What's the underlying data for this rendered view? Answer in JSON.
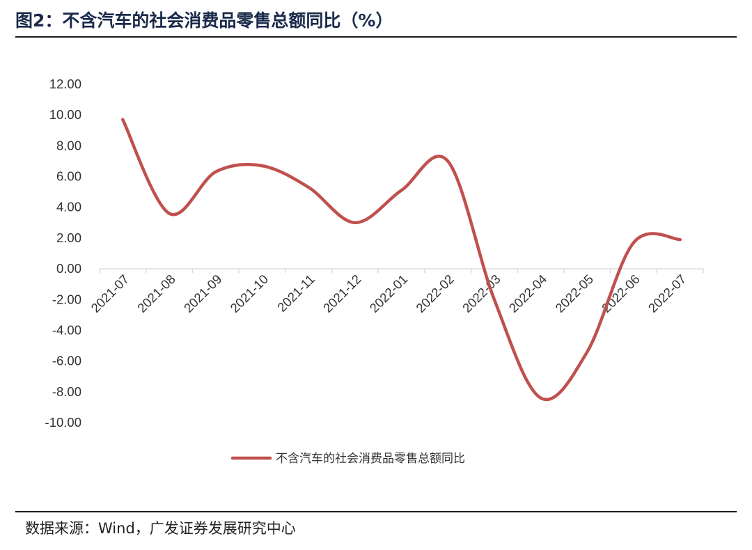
{
  "title": "图2：不含汽车的社会消费品零售总额同比（%）",
  "source": "数据来源：Wind，广发证券发展研究中心",
  "colors": {
    "series": "#c0504d",
    "axis": "#d9d9d9",
    "text": "#333333",
    "title": "#1a2a4a"
  },
  "chart_data": {
    "type": "line",
    "smooth": true,
    "title": "",
    "xlabel": "",
    "ylabel": "",
    "categories": [
      "2021-07",
      "2021-08",
      "2021-09",
      "2021-10",
      "2021-11",
      "2021-12",
      "2022-01",
      "2022-02",
      "2022-03",
      "2022-04",
      "2022-05",
      "2022-06",
      "2022-07"
    ],
    "series": [
      {
        "name": "不含汽车的社会消费品零售总额同比",
        "values": [
          9.7,
          3.6,
          6.3,
          6.7,
          5.3,
          3.0,
          5.1,
          7.0,
          -2.0,
          -8.4,
          -5.4,
          1.7,
          1.9
        ]
      }
    ],
    "ylim": [
      -10,
      12
    ],
    "yticks": [
      "12.00",
      "10.00",
      "8.00",
      "6.00",
      "4.00",
      "2.00",
      "0.00",
      "-2.00",
      "-4.00",
      "-6.00",
      "-8.00",
      "-10.00"
    ],
    "grid": false,
    "legend_position": "bottom"
  }
}
